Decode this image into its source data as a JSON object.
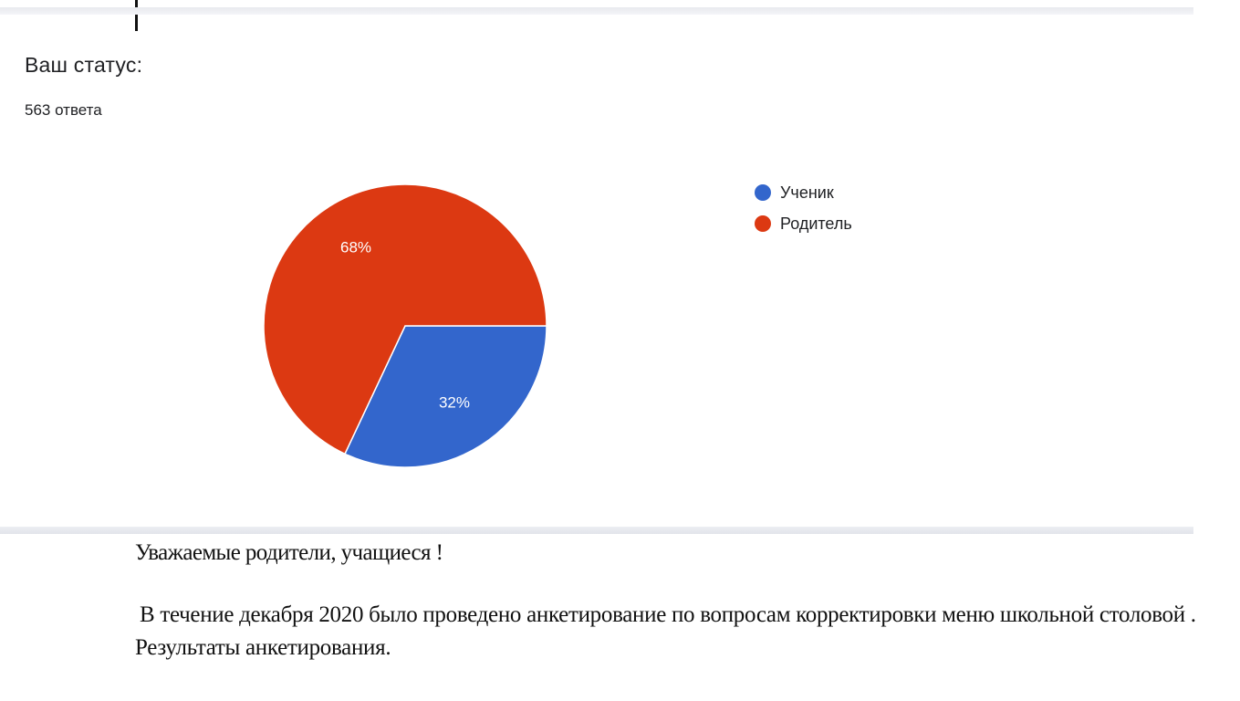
{
  "question": {
    "title": "Ваш статус:",
    "responses": "563 ответа"
  },
  "chart_data": {
    "type": "pie",
    "labels": [
      "Ученик",
      "Родитель"
    ],
    "values": [
      32,
      68
    ],
    "data_labels": [
      "32%",
      "68%"
    ],
    "colors": [
      "#3366cc",
      "#dc3912"
    ],
    "legend": "right"
  },
  "notice": {
    "greeting": "Уважаемые родители, учащиеся !",
    "body": "В течение декабря  2020 было проведено анкетирование по вопросам корректировки меню школьной столовой . Результаты анкетирования."
  }
}
